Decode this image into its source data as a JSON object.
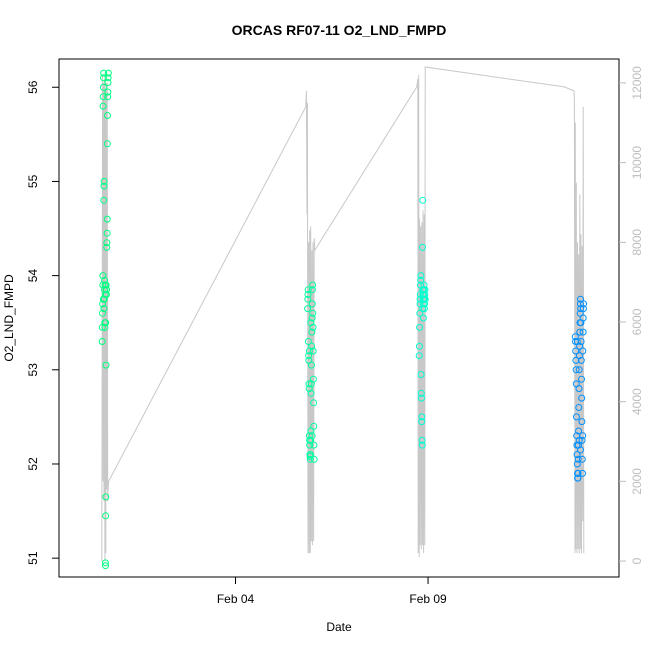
{
  "chart_data": {
    "type": "scatter",
    "title": "ORCAS RF07-11 O2_LND_FMPD",
    "xlabel": "Date",
    "ylabel": "O2_LND_FMPD",
    "x_axis": {
      "kind": "date",
      "range": [
        "2016-01-30T10:00",
        "2016-02-13T23:00"
      ],
      "ticks": [
        "Feb 04",
        "Feb 09"
      ],
      "tick_dates": [
        "2016-02-04",
        "2016-02-09"
      ]
    },
    "ylim": [
      50.8,
      56.3
    ],
    "yticks": [
      51,
      52,
      53,
      54,
      55,
      56
    ],
    "y2_axis": {
      "label": "",
      "range": [
        -400,
        12600
      ],
      "ticks": [
        0,
        2000,
        4000,
        6000,
        8000,
        10000,
        12000
      ],
      "color": "#bdbdbd"
    },
    "grid": false,
    "legend": "none",
    "series": [
      {
        "flight": "RF07",
        "color": "#00ff80",
        "points": [
          [
            "2016-01-31T12:54",
            53.3
          ],
          [
            "2016-01-31T13:00",
            53.45
          ],
          [
            "2016-01-31T13:05",
            53.6
          ],
          [
            "2016-01-31T13:11",
            53.7
          ],
          [
            "2016-01-31T13:17",
            53.9
          ],
          [
            "2016-01-31T13:22",
            54.0
          ],
          [
            "2016-01-31T13:28",
            55.8
          ],
          [
            "2016-01-31T13:34",
            55.9
          ],
          [
            "2016-01-31T13:40",
            56.0
          ],
          [
            "2016-01-31T13:45",
            56.1
          ],
          [
            "2016-01-31T13:51",
            56.15
          ],
          [
            "2016-01-31T13:57",
            54.8
          ],
          [
            "2016-01-31T14:02",
            54.95
          ],
          [
            "2016-01-31T14:08",
            55.0
          ],
          [
            "2016-01-31T14:14",
            53.75
          ],
          [
            "2016-01-31T14:20",
            53.85
          ],
          [
            "2016-01-31T14:25",
            53.95
          ],
          [
            "2016-01-31T14:31",
            53.5
          ],
          [
            "2016-01-31T14:37",
            53.45
          ],
          [
            "2016-01-31T14:42",
            53.9
          ],
          [
            "2016-01-31T14:48",
            53.8
          ],
          [
            "2016-01-31T14:54",
            50.95
          ],
          [
            "2016-01-31T15:00",
            50.92
          ],
          [
            "2016-01-31T15:05",
            51.45
          ],
          [
            "2016-01-31T15:11",
            51.65
          ],
          [
            "2016-01-31T15:17",
            53.05
          ],
          [
            "2016-01-31T15:22",
            53.9
          ],
          [
            "2016-01-31T15:28",
            53.85
          ],
          [
            "2016-01-31T15:34",
            53.8
          ],
          [
            "2016-01-31T15:40",
            53.85
          ],
          [
            "2016-01-31T15:45",
            54.3
          ],
          [
            "2016-01-31T15:51",
            54.35
          ],
          [
            "2016-01-31T15:57",
            54.45
          ],
          [
            "2016-01-31T16:02",
            54.6
          ],
          [
            "2016-01-31T16:08",
            55.4
          ],
          [
            "2016-01-31T16:14",
            55.7
          ],
          [
            "2016-01-31T16:20",
            55.9
          ],
          [
            "2016-01-31T16:25",
            55.95
          ],
          [
            "2016-01-31T16:31",
            56.05
          ],
          [
            "2016-01-31T16:37",
            56.1
          ],
          [
            "2016-01-31T16:42",
            56.15
          ],
          [
            "2016-01-31T14:02",
            53.65
          ],
          [
            "2016-01-31T15:05",
            53.5
          ],
          [
            "2016-01-31T13:40",
            53.75
          ]
        ]
      },
      {
        "flight": "RF08",
        "color": "#00ffa0",
        "points": [
          [
            "2016-02-05T20:57",
            53.65
          ],
          [
            "2016-02-05T21:05",
            53.75
          ],
          [
            "2016-02-05T21:12",
            53.8
          ],
          [
            "2016-02-05T21:19",
            53.85
          ],
          [
            "2016-02-05T21:26",
            53.3
          ],
          [
            "2016-02-05T21:33",
            53.15
          ],
          [
            "2016-02-05T21:40",
            53.1
          ],
          [
            "2016-02-05T21:48",
            52.85
          ],
          [
            "2016-02-05T21:55",
            52.8
          ],
          [
            "2016-02-05T22:02",
            52.3
          ],
          [
            "2016-02-05T22:09",
            52.25
          ],
          [
            "2016-02-05T22:16",
            52.2
          ],
          [
            "2016-02-05T22:24",
            52.1
          ],
          [
            "2016-02-05T22:31",
            52.08
          ],
          [
            "2016-02-05T22:38",
            52.05
          ],
          [
            "2016-02-05T22:45",
            52.1
          ],
          [
            "2016-02-05T22:52",
            52.25
          ],
          [
            "2016-02-05T23:00",
            52.35
          ],
          [
            "2016-02-05T23:07",
            52.75
          ],
          [
            "2016-02-05T23:14",
            52.85
          ],
          [
            "2016-02-05T23:21",
            53.05
          ],
          [
            "2016-02-05T23:28",
            53.25
          ],
          [
            "2016-02-05T23:36",
            53.4
          ],
          [
            "2016-02-05T23:43",
            53.55
          ],
          [
            "2016-02-05T23:50",
            53.7
          ],
          [
            "2016-02-05T23:57",
            53.85
          ],
          [
            "2016-02-06T00:04",
            53.9
          ],
          [
            "2016-02-06T00:12",
            53.6
          ],
          [
            "2016-02-06T00:19",
            53.45
          ],
          [
            "2016-02-06T00:26",
            53.2
          ],
          [
            "2016-02-06T00:33",
            52.9
          ],
          [
            "2016-02-06T00:40",
            52.65
          ],
          [
            "2016-02-06T00:48",
            52.4
          ],
          [
            "2016-02-06T00:55",
            52.2
          ],
          [
            "2016-02-06T01:02",
            52.05
          ],
          [
            "2016-02-05T22:02",
            53.2
          ],
          [
            "2016-02-05T23:00",
            53.5
          ],
          [
            "2016-02-05T23:43",
            52.3
          ]
        ]
      },
      {
        "flight": "RF09",
        "color": "#00ffd0",
        "points": [
          [
            "2016-02-08T18:28",
            53.15
          ],
          [
            "2016-02-08T18:36",
            53.25
          ],
          [
            "2016-02-08T18:43",
            53.45
          ],
          [
            "2016-02-08T18:50",
            53.6
          ],
          [
            "2016-02-08T18:57",
            53.7
          ],
          [
            "2016-02-08T19:04",
            53.75
          ],
          [
            "2016-02-08T19:12",
            53.8
          ],
          [
            "2016-02-08T19:19",
            53.9
          ],
          [
            "2016-02-08T19:26",
            53.95
          ],
          [
            "2016-02-08T19:33",
            54.0
          ],
          [
            "2016-02-08T19:40",
            52.95
          ],
          [
            "2016-02-08T19:48",
            52.75
          ],
          [
            "2016-02-08T19:55",
            52.7
          ],
          [
            "2016-02-08T20:02",
            52.45
          ],
          [
            "2016-02-08T20:09",
            52.5
          ],
          [
            "2016-02-08T20:16",
            52.25
          ],
          [
            "2016-02-08T20:24",
            52.2
          ],
          [
            "2016-02-08T20:31",
            54.3
          ],
          [
            "2016-02-08T20:38",
            54.8
          ],
          [
            "2016-02-08T20:45",
            53.85
          ],
          [
            "2016-02-08T20:52",
            53.8
          ],
          [
            "2016-02-08T21:00",
            53.75
          ],
          [
            "2016-02-08T21:07",
            53.7
          ],
          [
            "2016-02-08T21:14",
            53.8
          ],
          [
            "2016-02-08T21:21",
            53.85
          ],
          [
            "2016-02-08T21:28",
            53.9
          ],
          [
            "2016-02-08T21:36",
            53.75
          ],
          [
            "2016-02-08T21:43",
            53.65
          ],
          [
            "2016-02-08T21:50",
            53.7
          ],
          [
            "2016-02-08T21:57",
            53.8
          ],
          [
            "2016-02-08T22:04",
            53.85
          ],
          [
            "2016-02-08T22:12",
            53.75
          ],
          [
            "2016-02-08T20:45",
            53.65
          ],
          [
            "2016-02-08T21:07",
            53.55
          ]
        ]
      },
      {
        "flight": "RF10",
        "color": "#0090ff",
        "points": [
          [
            "2016-02-12T19:47",
            53.35
          ],
          [
            "2016-02-12T19:55",
            53.3
          ],
          [
            "2016-02-12T20:02",
            53.2
          ],
          [
            "2016-02-12T20:09",
            53.1
          ],
          [
            "2016-02-12T20:16",
            53.0
          ],
          [
            "2016-02-12T20:24",
            52.85
          ],
          [
            "2016-02-12T20:31",
            52.5
          ],
          [
            "2016-02-12T20:38",
            52.3
          ],
          [
            "2016-02-12T20:45",
            52.2
          ],
          [
            "2016-02-12T20:52",
            52.1
          ],
          [
            "2016-02-12T21:00",
            52.0
          ],
          [
            "2016-02-12T21:07",
            51.9
          ],
          [
            "2016-02-12T21:14",
            51.85
          ],
          [
            "2016-02-12T21:21",
            51.85
          ],
          [
            "2016-02-12T21:28",
            51.9
          ],
          [
            "2016-02-12T21:36",
            52.05
          ],
          [
            "2016-02-12T21:43",
            52.2
          ],
          [
            "2016-02-12T21:50",
            52.35
          ],
          [
            "2016-02-12T21:57",
            52.6
          ],
          [
            "2016-02-12T22:04",
            52.8
          ],
          [
            "2016-02-12T22:12",
            53.0
          ],
          [
            "2016-02-12T22:19",
            53.15
          ],
          [
            "2016-02-12T22:26",
            53.25
          ],
          [
            "2016-02-12T22:33",
            53.4
          ],
          [
            "2016-02-12T22:40",
            53.5
          ],
          [
            "2016-02-12T22:48",
            53.6
          ],
          [
            "2016-02-12T22:55",
            53.7
          ],
          [
            "2016-02-12T23:02",
            53.75
          ],
          [
            "2016-02-12T23:09",
            53.65
          ],
          [
            "2016-02-12T23:16",
            53.5
          ],
          [
            "2016-02-12T23:24",
            53.3
          ],
          [
            "2016-02-12T23:31",
            53.1
          ],
          [
            "2016-02-12T23:38",
            52.9
          ],
          [
            "2016-02-12T23:45",
            52.7
          ],
          [
            "2016-02-12T23:52",
            52.45
          ],
          [
            "2016-02-13T00:00",
            52.25
          ],
          [
            "2016-02-13T00:07",
            52.05
          ],
          [
            "2016-02-13T00:14",
            51.9
          ],
          [
            "2016-02-13T00:21",
            52.3
          ],
          [
            "2016-02-13T00:28",
            53.2
          ],
          [
            "2016-02-13T00:36",
            53.4
          ],
          [
            "2016-02-13T00:43",
            53.55
          ],
          [
            "2016-02-13T00:50",
            53.65
          ],
          [
            "2016-02-13T00:57",
            53.7
          ],
          [
            "2016-02-12T21:00",
            53.3
          ],
          [
            "2016-02-12T22:12",
            52.25
          ],
          [
            "2016-02-12T23:02",
            52.15
          ]
        ]
      }
    ],
    "altitude_trace": {
      "axis": "y2",
      "color": "#c8c8c8",
      "points": [
        [
          "2016-01-31T12:42",
          0
        ],
        [
          "2016-01-31T13:11",
          12200
        ],
        [
          "2016-01-31T13:28",
          2000
        ],
        [
          "2016-01-31T13:45",
          12000
        ],
        [
          "2016-01-31T14:02",
          1500
        ],
        [
          "2016-01-31T14:20",
          12100
        ],
        [
          "2016-01-31T14:37",
          0
        ],
        [
          "2016-01-31T14:54",
          11800
        ],
        [
          "2016-01-31T15:11",
          200
        ],
        [
          "2016-01-31T15:28",
          12000
        ],
        [
          "2016-01-31T15:45",
          1800
        ],
        [
          "2016-01-31T16:02",
          12000
        ],
        [
          "2016-01-31T16:20",
          1500
        ],
        [
          "2016-01-31T16:37",
          1800
        ],
        [
          "2016-01-31T16:54",
          2000
        ],
        [
          "2016-02-05T19:50",
          11400
        ],
        [
          "2016-02-05T20:12",
          11800
        ],
        [
          "2016-02-05T20:19",
          10800
        ],
        [
          "2016-02-05T20:33",
          8700
        ],
        [
          "2016-02-05T20:48",
          11500
        ],
        [
          "2016-02-05T21:12",
          200
        ],
        [
          "2016-02-05T21:33",
          8000
        ],
        [
          "2016-02-05T21:55",
          200
        ],
        [
          "2016-02-05T22:16",
          8300
        ],
        [
          "2016-02-05T22:38",
          200
        ],
        [
          "2016-02-05T22:52",
          8400
        ],
        [
          "2016-02-05T23:14",
          500
        ],
        [
          "2016-02-05T23:36",
          7800
        ],
        [
          "2016-02-05T23:57",
          400
        ],
        [
          "2016-02-06T00:19",
          8000
        ],
        [
          "2016-02-06T00:40",
          500
        ],
        [
          "2016-02-06T01:02",
          8100
        ],
        [
          "2016-02-06T01:24",
          7800
        ],
        [
          "2016-02-08T17:00",
          11900
        ],
        [
          "2016-02-08T17:36",
          12100
        ],
        [
          "2016-02-08T17:50",
          200
        ],
        [
          "2016-02-08T18:12",
          12200
        ],
        [
          "2016-02-08T18:28",
          100
        ],
        [
          "2016-02-08T18:43",
          8600
        ],
        [
          "2016-02-08T19:04",
          400
        ],
        [
          "2016-02-08T19:26",
          8400
        ],
        [
          "2016-02-08T19:48",
          300
        ],
        [
          "2016-02-08T20:09",
          8500
        ],
        [
          "2016-02-08T20:31",
          400
        ],
        [
          "2016-02-08T20:52",
          8800
        ],
        [
          "2016-02-08T21:14",
          200
        ],
        [
          "2016-02-08T21:36",
          8700
        ],
        [
          "2016-02-08T21:57",
          400
        ],
        [
          "2016-02-08T22:12",
          12400
        ],
        [
          "2016-02-12T13:00",
          11900
        ],
        [
          "2016-02-12T18:55",
          11800
        ],
        [
          "2016-02-12T19:12",
          11600
        ],
        [
          "2016-02-12T19:33",
          200
        ],
        [
          "2016-02-12T19:47",
          11000
        ],
        [
          "2016-02-12T20:02",
          300
        ],
        [
          "2016-02-12T20:24",
          9500
        ],
        [
          "2016-02-12T20:45",
          200
        ],
        [
          "2016-02-12T21:07",
          8000
        ],
        [
          "2016-02-12T21:28",
          300
        ],
        [
          "2016-02-12T21:50",
          7700
        ],
        [
          "2016-02-12T22:12",
          200
        ],
        [
          "2016-02-12T22:33",
          9200
        ],
        [
          "2016-02-12T22:55",
          300
        ],
        [
          "2016-02-12T23:16",
          8200
        ],
        [
          "2016-02-12T23:38",
          200
        ],
        [
          "2016-02-13T00:00",
          7900
        ],
        [
          "2016-02-13T00:21",
          1000
        ],
        [
          "2016-02-13T00:43",
          11400
        ],
        [
          "2016-02-13T01:05",
          200
        ]
      ]
    }
  }
}
